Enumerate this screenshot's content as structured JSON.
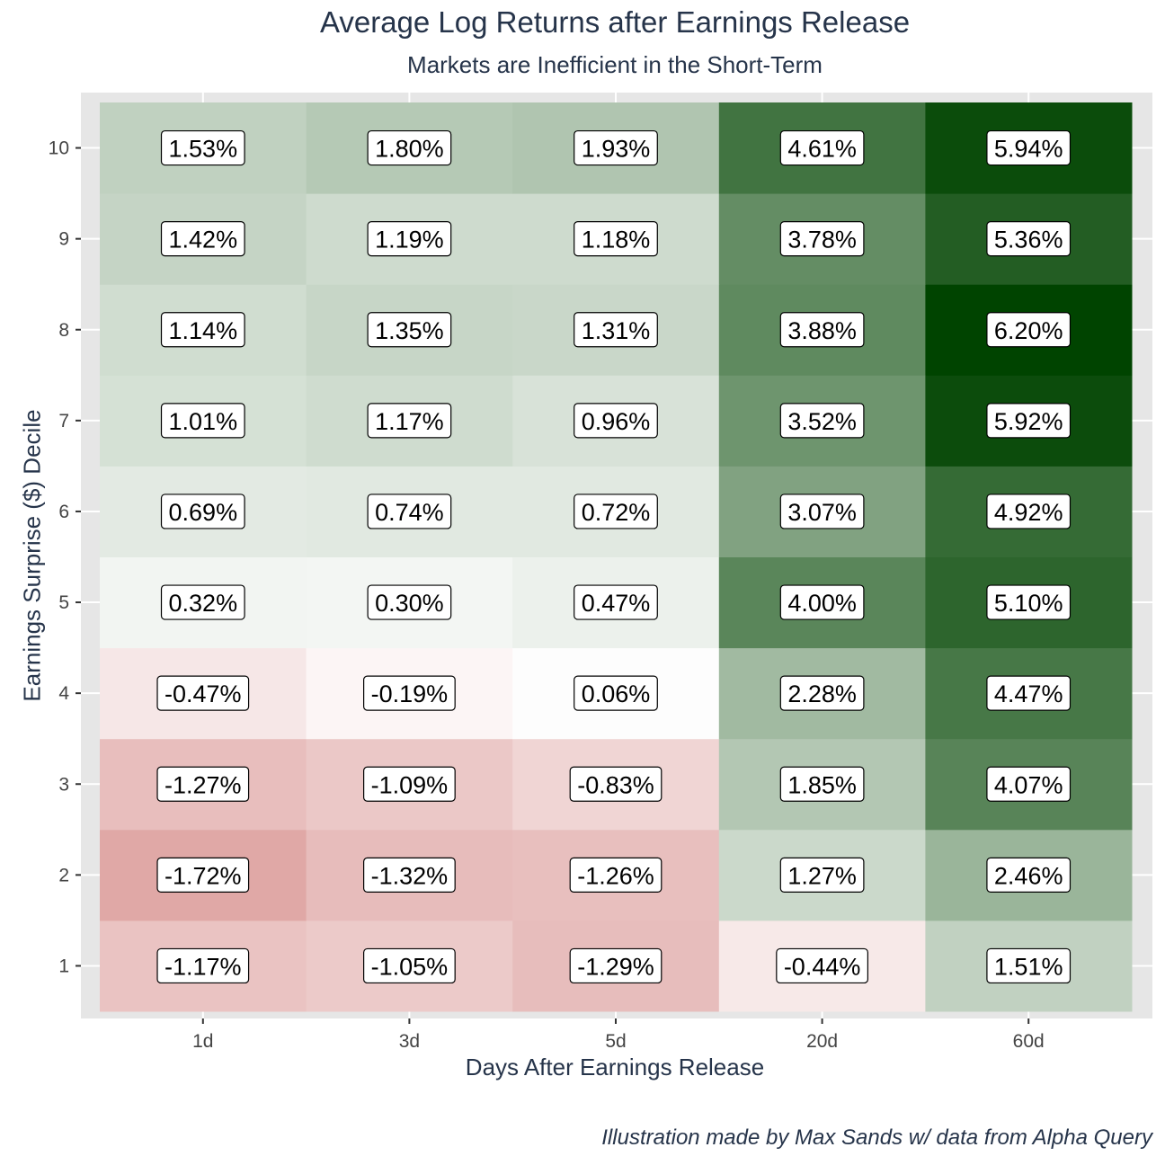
{
  "chart_data": {
    "type": "heatmap",
    "title": "Average Log Returns after Earnings Release",
    "subtitle": "Markets are Inefficient in the Short-Term",
    "xlabel": "Days After Earnings Release",
    "ylabel": "Earnings Surprise ($) Decile",
    "caption": "Illustration made by Max Sands w/ data from Alpha Query",
    "x_categories": [
      "1d",
      "3d",
      "5d",
      "20d",
      "60d"
    ],
    "y_categories": [
      "1",
      "2",
      "3",
      "4",
      "5",
      "6",
      "7",
      "8",
      "9",
      "10"
    ],
    "values": [
      [
        -1.17,
        -1.05,
        -1.29,
        -0.44,
        1.51
      ],
      [
        -1.72,
        -1.32,
        -1.26,
        1.27,
        2.46
      ],
      [
        -1.27,
        -1.09,
        -0.83,
        1.85,
        4.07
      ],
      [
        -0.47,
        -0.19,
        0.06,
        2.28,
        4.47
      ],
      [
        0.32,
        0.3,
        0.47,
        4.0,
        5.1
      ],
      [
        0.69,
        0.74,
        0.72,
        3.07,
        4.92
      ],
      [
        1.01,
        1.17,
        0.96,
        3.52,
        5.92
      ],
      [
        1.14,
        1.35,
        1.31,
        3.88,
        6.2
      ],
      [
        1.42,
        1.19,
        1.18,
        3.78,
        5.36
      ],
      [
        1.53,
        1.8,
        1.93,
        4.61,
        5.94
      ]
    ],
    "value_labels": [
      [
        "-1.17%",
        "-1.05%",
        "-1.29%",
        "-0.44%",
        "1.51%"
      ],
      [
        "-1.72%",
        "-1.32%",
        "-1.26%",
        "1.27%",
        "2.46%"
      ],
      [
        "-1.27%",
        "-1.09%",
        "-0.83%",
        "1.85%",
        "4.07%"
      ],
      [
        "-0.47%",
        "-0.19%",
        "0.06%",
        "2.28%",
        "4.47%"
      ],
      [
        "0.32%",
        "0.30%",
        "0.47%",
        "4.00%",
        "5.10%"
      ],
      [
        "0.69%",
        "0.74%",
        "0.72%",
        "3.07%",
        "4.92%"
      ],
      [
        "1.01%",
        "1.17%",
        "0.96%",
        "3.52%",
        "5.92%"
      ],
      [
        "1.14%",
        "1.35%",
        "1.31%",
        "3.88%",
        "6.20%"
      ],
      [
        "1.42%",
        "1.19%",
        "1.18%",
        "3.78%",
        "5.36%"
      ],
      [
        "1.53%",
        "1.80%",
        "1.93%",
        "4.61%",
        "5.94%"
      ]
    ],
    "colors": {
      "low": "#c0504d",
      "mid": "#ffffff",
      "high": "#004400",
      "panel": "#e6e6e6"
    },
    "color_limits": [
      -1.72,
      6.2
    ],
    "grid": true,
    "legend": "none"
  }
}
